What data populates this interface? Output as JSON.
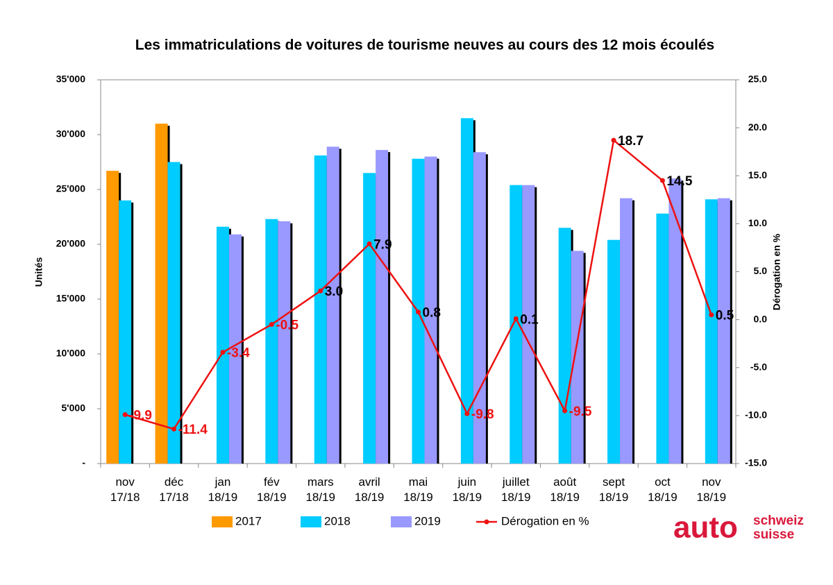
{
  "chart_data": {
    "type": "bar",
    "title": "Les immatriculations de voitures de tourisme neuves au cours des 12 mois écoulés",
    "y_label": "Unités",
    "y2_label": "Dérogation en %",
    "categories": [
      "nov\n17/18",
      "déc\n17/18",
      "jan\n18/19",
      "fév\n18/19",
      "mars\n18/19",
      "avril\n18/19",
      "mai\n18/19",
      "juin\n18/19",
      "juillet\n18/19",
      "août\n18/19",
      "sept\n18/19",
      "oct\n18/19",
      "nov\n18/19"
    ],
    "series": [
      {
        "name": "2017",
        "color": "#ff9900",
        "values": [
          26700,
          31000,
          null,
          null,
          null,
          null,
          null,
          null,
          null,
          null,
          null,
          null,
          null
        ]
      },
      {
        "name": "2018",
        "color": "#00ccff",
        "values": [
          24000,
          27500,
          21600,
          22300,
          28100,
          26500,
          27800,
          31500,
          25400,
          21500,
          20400,
          22800,
          24100
        ]
      },
      {
        "name": "2019",
        "color": "#9999ff",
        "values": [
          null,
          null,
          20900,
          22100,
          28900,
          28600,
          28000,
          28400,
          25400,
          19400,
          24200,
          26000,
          24200
        ]
      },
      {
        "name": "Dérogation en %",
        "color": "#ee1111",
        "type": "line",
        "axis": "y2",
        "values": [
          -9.9,
          -11.4,
          -3.4,
          -0.5,
          3.0,
          7.9,
          0.8,
          -9.8,
          0.1,
          -9.5,
          18.7,
          14.5,
          0.5
        ],
        "value_labels": [
          "-9.9",
          "-11.4",
          "-3.4",
          "-0.5",
          "3.0",
          "7.9",
          "0.8",
          "-9.8",
          "0.1",
          "-9.5",
          "18.7",
          "14.5",
          "0.5"
        ],
        "positive_label_color": "#000000",
        "negative_label_color": "#ee1111"
      }
    ],
    "ylim": [
      0,
      35000
    ],
    "yticks": [
      {
        "value": 0,
        "label": "-"
      },
      {
        "value": 5000,
        "label": "5'000"
      },
      {
        "value": 10000,
        "label": "10'000"
      },
      {
        "value": 15000,
        "label": "15'000"
      },
      {
        "value": 20000,
        "label": "20'000"
      },
      {
        "value": 25000,
        "label": "25'000"
      },
      {
        "value": 30000,
        "label": "30'000"
      },
      {
        "value": 35000,
        "label": "35'000"
      }
    ],
    "y2lim": [
      -15,
      25
    ],
    "y2ticks": [
      {
        "value": -15,
        "label": "-15.0"
      },
      {
        "value": -10,
        "label": "-10.0"
      },
      {
        "value": -5,
        "label": "-5.0"
      },
      {
        "value": 0,
        "label": "0.0"
      },
      {
        "value": 5,
        "label": "5.0"
      },
      {
        "value": 10,
        "label": "10.0"
      },
      {
        "value": 15,
        "label": "15.0"
      },
      {
        "value": 20,
        "label": "20.0"
      },
      {
        "value": 25,
        "label": "25.0"
      }
    ],
    "grid": false,
    "legend": "bottom"
  },
  "logo": {
    "main": "auto",
    "line1": "schweiz",
    "line2": "suisse",
    "color": "#d9183b"
  }
}
